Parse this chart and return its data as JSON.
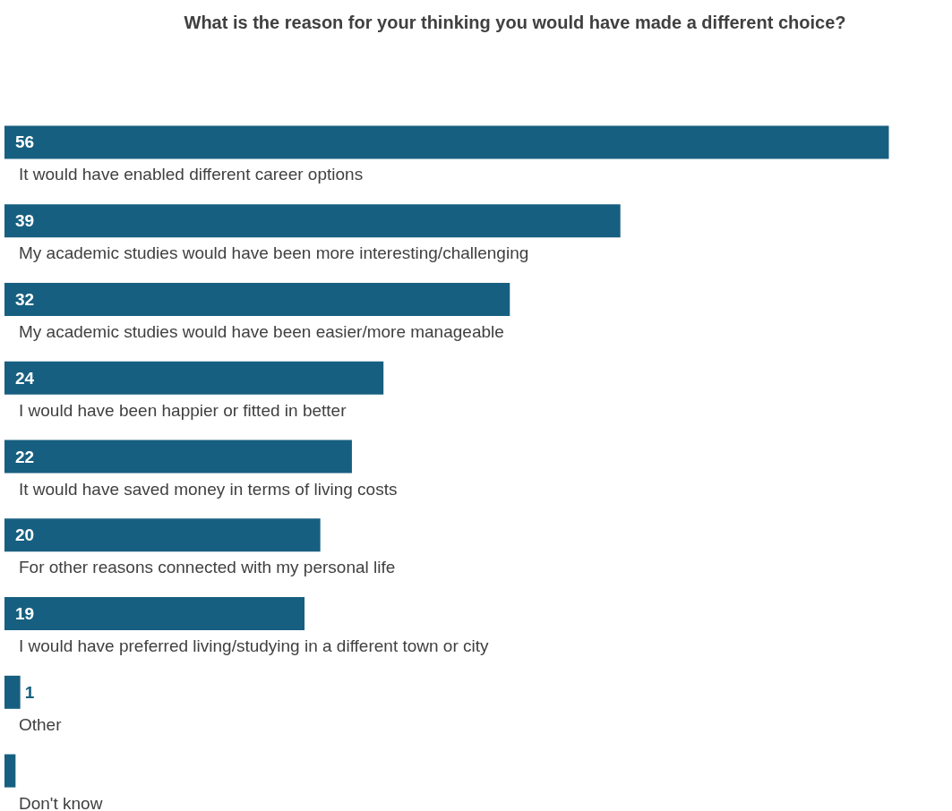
{
  "chart_data": {
    "type": "bar",
    "orientation": "horizontal",
    "title": "What is the reason for your thinking you would have made a different choice?",
    "categories": [
      "It would have enabled different career options",
      "My academic studies would have been more interesting/challenging",
      "My academic studies would have been easier/more manageable",
      "I would have been happier or fitted in better",
      "It would have saved money in terms of living costs",
      "For other reasons connected with my personal life",
      "I would have preferred living/studying in a different town or city",
      "Other",
      "Don't know"
    ],
    "values": [
      56,
      39,
      32,
      24,
      22,
      20,
      19,
      1,
      0.7
    ],
    "value_labels": [
      "56",
      "39",
      "32",
      "24",
      "22",
      "20",
      "19",
      "1",
      null
    ],
    "color": "#175f80"
  }
}
